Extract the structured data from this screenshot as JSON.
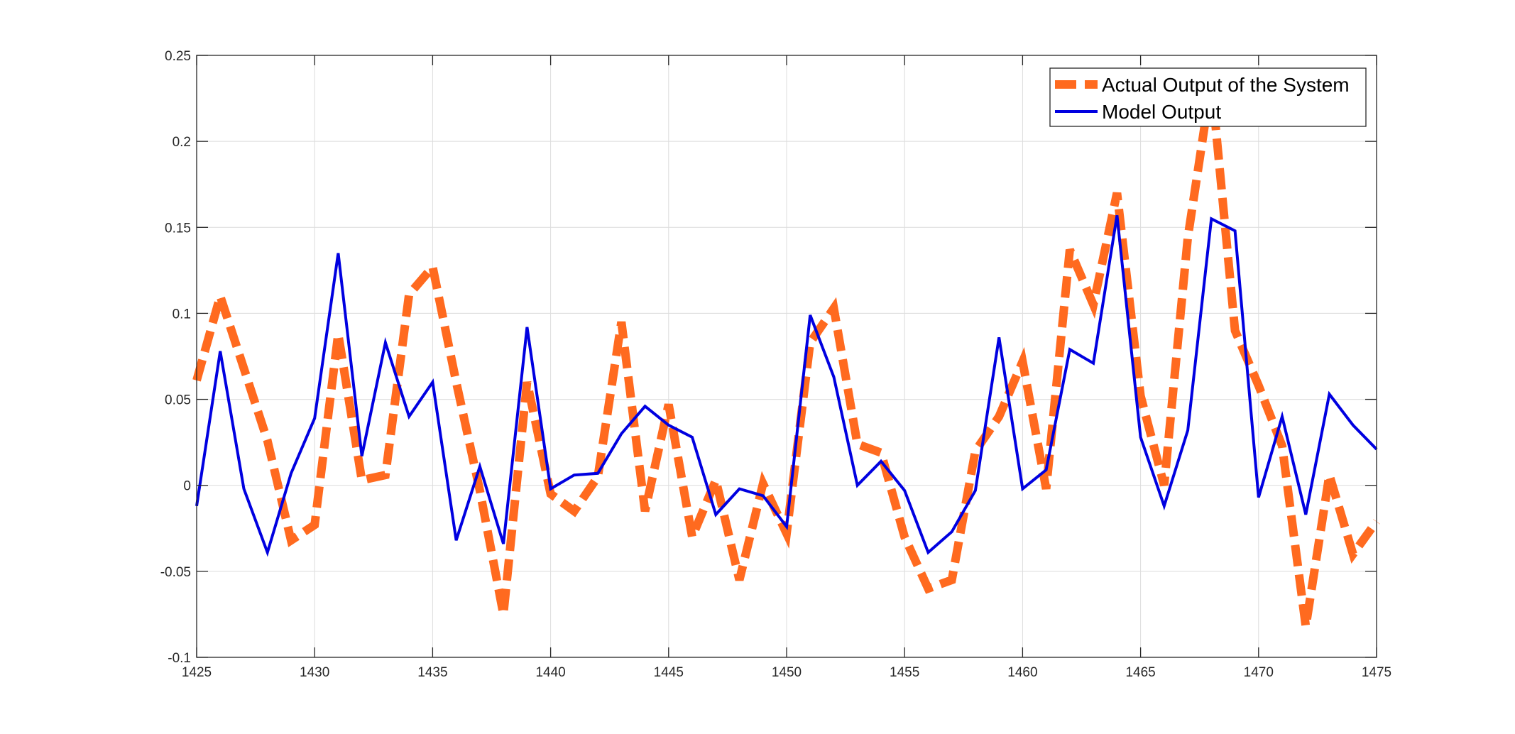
{
  "chart_data": {
    "type": "line",
    "title": "",
    "xlabel": "",
    "ylabel": "",
    "xlim": [
      1425,
      1475
    ],
    "ylim": [
      -0.1,
      0.25
    ],
    "grid": true,
    "legend_position": "top-right",
    "x_ticks": [
      "1425",
      "1430",
      "1435",
      "1440",
      "1445",
      "1450",
      "1455",
      "1460",
      "1465",
      "1470",
      "1475"
    ],
    "y_ticks": [
      "0.25",
      "0.2",
      "0.15",
      "0.1",
      "0.05",
      "0",
      "-0.05",
      "-0.1"
    ],
    "x": [
      1425,
      1426,
      1427,
      1428,
      1429,
      1430,
      1431,
      1432,
      1433,
      1434,
      1435,
      1436,
      1437,
      1438,
      1439,
      1440,
      1441,
      1442,
      1443,
      1444,
      1445,
      1446,
      1447,
      1448,
      1449,
      1450,
      1451,
      1452,
      1453,
      1454,
      1455,
      1456,
      1457,
      1458,
      1459,
      1460,
      1461,
      1462,
      1463,
      1464,
      1465,
      1466,
      1467,
      1468,
      1469,
      1470,
      1471,
      1472,
      1473,
      1474,
      1475
    ],
    "series": [
      {
        "name": "Actual Output of the System",
        "color": "#FF6A1F",
        "style": "dashed",
        "values": [
          0.061,
          0.11,
          0.068,
          0.026,
          -0.032,
          -0.023,
          0.088,
          0.003,
          0.006,
          0.111,
          0.127,
          0.06,
          -0.003,
          -0.075,
          0.06,
          -0.005,
          -0.015,
          0.005,
          0.095,
          -0.015,
          0.047,
          -0.03,
          0.003,
          -0.055,
          0.001,
          -0.028,
          0.083,
          0.103,
          0.024,
          0.019,
          -0.03,
          -0.06,
          -0.055,
          0.02,
          0.04,
          0.072,
          -0.002,
          0.137,
          0.105,
          0.17,
          0.052,
          0.0,
          0.144,
          0.235,
          0.09,
          0.058,
          0.023,
          -0.082,
          0.006,
          -0.04,
          -0.021
        ]
      },
      {
        "name": "Model Output",
        "color": "#0000E0",
        "style": "solid",
        "values": [
          -0.012,
          0.078,
          -0.002,
          -0.039,
          0.007,
          0.039,
          0.135,
          0.017,
          0.083,
          0.04,
          0.06,
          -0.032,
          0.011,
          -0.034,
          0.092,
          -0.002,
          0.006,
          0.007,
          0.03,
          0.046,
          0.035,
          0.028,
          -0.017,
          -0.002,
          -0.006,
          -0.024,
          0.099,
          0.063,
          0.0,
          0.014,
          -0.003,
          -0.039,
          -0.027,
          -0.003,
          0.086,
          -0.002,
          0.009,
          0.079,
          0.071,
          0.157,
          0.028,
          -0.012,
          0.032,
          0.155,
          0.148,
          -0.007,
          0.04,
          -0.017,
          0.053,
          0.035,
          0.021
        ]
      }
    ]
  }
}
